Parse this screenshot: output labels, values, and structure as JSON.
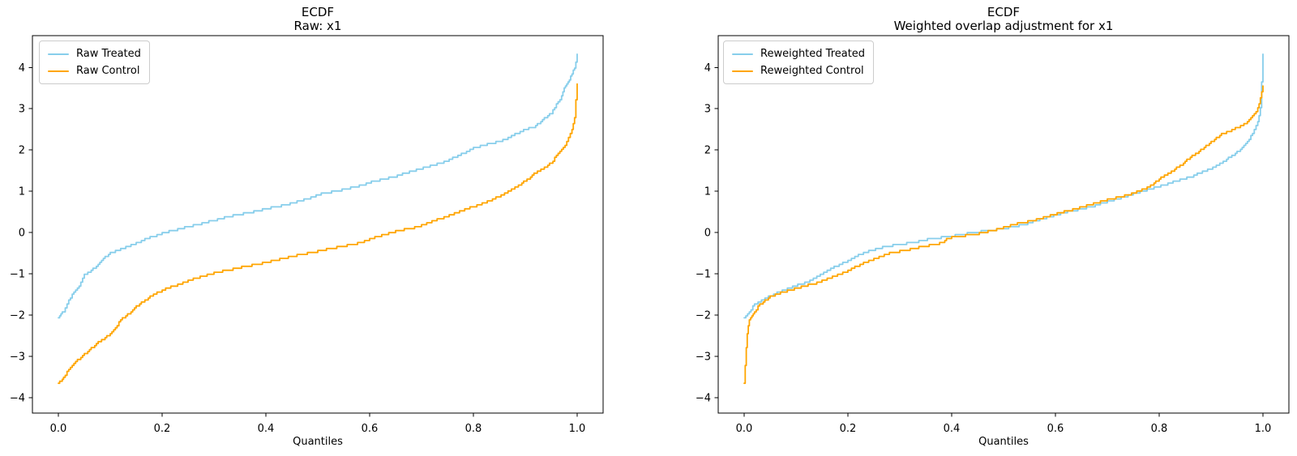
{
  "figure": {
    "background": "#ffffff",
    "text_color": "#000000",
    "spine_color": "#000000",
    "legend_border_color": "#cccccc"
  },
  "chart_data": [
    {
      "type": "line",
      "title_line1": "ECDF",
      "title_line2": "Raw: x1",
      "xlabel": "Quantiles",
      "ylabel": "",
      "grid": false,
      "legend_position": "upper-left",
      "xlim": [
        -0.05,
        1.05
      ],
      "ylim": [
        -4.37,
        4.77
      ],
      "x_tick_values": [
        0.0,
        0.2,
        0.4,
        0.6,
        0.8,
        1.0
      ],
      "x_tick_labels": [
        "0.0",
        "0.2",
        "0.4",
        "0.6",
        "0.8",
        "1.0"
      ],
      "y_tick_values": [
        -4,
        -3,
        -2,
        -1,
        0,
        1,
        2,
        3,
        4
      ],
      "y_tick_labels": [
        "-4",
        "-3",
        "-2",
        "-1",
        "0",
        "1",
        "2",
        "3",
        "4"
      ],
      "series": [
        {
          "name": "Raw Treated",
          "color": "#87CEEB",
          "points": [
            [
              0.0,
              -2.05
            ],
            [
              0.005,
              -1.98
            ],
            [
              0.01,
              -1.9
            ],
            [
              0.02,
              -1.62
            ],
            [
              0.03,
              -1.45
            ],
            [
              0.04,
              -1.3
            ],
            [
              0.05,
              -1.02
            ],
            [
              0.06,
              -0.95
            ],
            [
              0.07,
              -0.85
            ],
            [
              0.08,
              -0.7
            ],
            [
              0.09,
              -0.6
            ],
            [
              0.1,
              -0.5
            ],
            [
              0.12,
              -0.4
            ],
            [
              0.14,
              -0.3
            ],
            [
              0.16,
              -0.2
            ],
            [
              0.18,
              -0.1
            ],
            [
              0.2,
              -0.02
            ],
            [
              0.23,
              0.08
            ],
            [
              0.26,
              0.17
            ],
            [
              0.3,
              0.3
            ],
            [
              0.34,
              0.42
            ],
            [
              0.38,
              0.52
            ],
            [
              0.4,
              0.58
            ],
            [
              0.44,
              0.68
            ],
            [
              0.48,
              0.82
            ],
            [
              0.5,
              0.92
            ],
            [
              0.54,
              1.02
            ],
            [
              0.58,
              1.13
            ],
            [
              0.6,
              1.22
            ],
            [
              0.64,
              1.33
            ],
            [
              0.68,
              1.48
            ],
            [
              0.7,
              1.55
            ],
            [
              0.74,
              1.7
            ],
            [
              0.76,
              1.8
            ],
            [
              0.78,
              1.92
            ],
            [
              0.8,
              2.04
            ],
            [
              0.82,
              2.12
            ],
            [
              0.84,
              2.18
            ],
            [
              0.86,
              2.25
            ],
            [
              0.88,
              2.38
            ],
            [
              0.9,
              2.5
            ],
            [
              0.92,
              2.58
            ],
            [
              0.94,
              2.8
            ],
            [
              0.95,
              2.9
            ],
            [
              0.96,
              3.1
            ],
            [
              0.97,
              3.3
            ],
            [
              0.975,
              3.5
            ],
            [
              0.98,
              3.6
            ],
            [
              0.985,
              3.7
            ],
            [
              0.99,
              3.85
            ],
            [
              0.995,
              4.0
            ],
            [
              1.0,
              4.3
            ]
          ]
        },
        {
          "name": "Raw Control",
          "color": "#FFA500",
          "points": [
            [
              0.0,
              -3.65
            ],
            [
              0.005,
              -3.58
            ],
            [
              0.01,
              -3.5
            ],
            [
              0.02,
              -3.3
            ],
            [
              0.03,
              -3.18
            ],
            [
              0.04,
              -3.05
            ],
            [
              0.05,
              -2.95
            ],
            [
              0.06,
              -2.85
            ],
            [
              0.07,
              -2.72
            ],
            [
              0.08,
              -2.62
            ],
            [
              0.09,
              -2.55
            ],
            [
              0.1,
              -2.45
            ],
            [
              0.11,
              -2.3
            ],
            [
              0.12,
              -2.12
            ],
            [
              0.13,
              -2.02
            ],
            [
              0.14,
              -1.92
            ],
            [
              0.15,
              -1.8
            ],
            [
              0.16,
              -1.7
            ],
            [
              0.17,
              -1.62
            ],
            [
              0.18,
              -1.52
            ],
            [
              0.19,
              -1.45
            ],
            [
              0.2,
              -1.4
            ],
            [
              0.22,
              -1.3
            ],
            [
              0.24,
              -1.22
            ],
            [
              0.26,
              -1.12
            ],
            [
              0.28,
              -1.05
            ],
            [
              0.3,
              -0.98
            ],
            [
              0.33,
              -0.9
            ],
            [
              0.36,
              -0.82
            ],
            [
              0.4,
              -0.72
            ],
            [
              0.43,
              -0.63
            ],
            [
              0.46,
              -0.55
            ],
            [
              0.48,
              -0.5
            ],
            [
              0.5,
              -0.45
            ],
            [
              0.53,
              -0.37
            ],
            [
              0.56,
              -0.3
            ],
            [
              0.58,
              -0.25
            ],
            [
              0.6,
              -0.16
            ],
            [
              0.62,
              -0.08
            ],
            [
              0.64,
              0.0
            ],
            [
              0.66,
              0.06
            ],
            [
              0.68,
              0.1
            ],
            [
              0.7,
              0.18
            ],
            [
              0.72,
              0.28
            ],
            [
              0.74,
              0.35
            ],
            [
              0.76,
              0.45
            ],
            [
              0.78,
              0.55
            ],
            [
              0.8,
              0.63
            ],
            [
              0.82,
              0.72
            ],
            [
              0.84,
              0.82
            ],
            [
              0.86,
              0.95
            ],
            [
              0.88,
              1.1
            ],
            [
              0.9,
              1.25
            ],
            [
              0.92,
              1.45
            ],
            [
              0.94,
              1.6
            ],
            [
              0.95,
              1.7
            ],
            [
              0.96,
              1.85
            ],
            [
              0.97,
              2.0
            ],
            [
              0.98,
              2.2
            ],
            [
              0.99,
              2.5
            ],
            [
              0.995,
              2.8
            ],
            [
              1.0,
              3.6
            ]
          ]
        }
      ]
    },
    {
      "type": "line",
      "title_line1": "ECDF",
      "title_line2": "Weighted overlap adjustment for x1",
      "xlabel": "Quantiles",
      "ylabel": "",
      "grid": false,
      "legend_position": "upper-left",
      "xlim": [
        -0.05,
        1.05
      ],
      "ylim": [
        -4.37,
        4.77
      ],
      "x_tick_values": [
        0.0,
        0.2,
        0.4,
        0.6,
        0.8,
        1.0
      ],
      "x_tick_labels": [
        "0.0",
        "0.2",
        "0.4",
        "0.6",
        "0.8",
        "1.0"
      ],
      "y_tick_values": [
        -4,
        -3,
        -2,
        -1,
        0,
        1,
        2,
        3,
        4
      ],
      "y_tick_labels": [
        "-4",
        "-3",
        "-2",
        "-1",
        "0",
        "1",
        "2",
        "3",
        "4"
      ],
      "series": [
        {
          "name": "Reweighted Treated",
          "color": "#87CEEB",
          "points": [
            [
              0.0,
              -2.05
            ],
            [
              0.01,
              -1.9
            ],
            [
              0.02,
              -1.75
            ],
            [
              0.04,
              -1.6
            ],
            [
              0.06,
              -1.48
            ],
            [
              0.08,
              -1.38
            ],
            [
              0.1,
              -1.28
            ],
            [
              0.12,
              -1.2
            ],
            [
              0.14,
              -1.08
            ],
            [
              0.15,
              -1.0
            ],
            [
              0.16,
              -0.92
            ],
            [
              0.18,
              -0.8
            ],
            [
              0.2,
              -0.68
            ],
            [
              0.22,
              -0.55
            ],
            [
              0.24,
              -0.45
            ],
            [
              0.26,
              -0.38
            ],
            [
              0.28,
              -0.32
            ],
            [
              0.3,
              -0.28
            ],
            [
              0.32,
              -0.25
            ],
            [
              0.34,
              -0.2
            ],
            [
              0.36,
              -0.15
            ],
            [
              0.38,
              -0.12
            ],
            [
              0.4,
              -0.08
            ],
            [
              0.42,
              -0.04
            ],
            [
              0.44,
              0.0
            ],
            [
              0.46,
              0.03
            ],
            [
              0.48,
              0.06
            ],
            [
              0.5,
              0.1
            ],
            [
              0.52,
              0.15
            ],
            [
              0.54,
              0.2
            ],
            [
              0.56,
              0.28
            ],
            [
              0.58,
              0.35
            ],
            [
              0.6,
              0.42
            ],
            [
              0.62,
              0.5
            ],
            [
              0.64,
              0.55
            ],
            [
              0.66,
              0.6
            ],
            [
              0.68,
              0.67
            ],
            [
              0.7,
              0.75
            ],
            [
              0.72,
              0.82
            ],
            [
              0.74,
              0.9
            ],
            [
              0.76,
              0.98
            ],
            [
              0.78,
              1.05
            ],
            [
              0.8,
              1.12
            ],
            [
              0.82,
              1.2
            ],
            [
              0.84,
              1.28
            ],
            [
              0.86,
              1.35
            ],
            [
              0.88,
              1.45
            ],
            [
              0.9,
              1.55
            ],
            [
              0.92,
              1.7
            ],
            [
              0.94,
              1.85
            ],
            [
              0.95,
              1.95
            ],
            [
              0.96,
              2.05
            ],
            [
              0.97,
              2.2
            ],
            [
              0.98,
              2.4
            ],
            [
              0.99,
              2.7
            ],
            [
              0.995,
              3.0
            ],
            [
              1.0,
              4.3
            ]
          ]
        },
        {
          "name": "Reweighted Control",
          "color": "#FFA500",
          "points": [
            [
              0.0,
              -3.65
            ],
            [
              0.002,
              -3.2
            ],
            [
              0.004,
              -2.8
            ],
            [
              0.006,
              -2.45
            ],
            [
              0.008,
              -2.25
            ],
            [
              0.01,
              -2.1
            ],
            [
              0.015,
              -2.0
            ],
            [
              0.02,
              -1.9
            ],
            [
              0.03,
              -1.75
            ],
            [
              0.04,
              -1.65
            ],
            [
              0.05,
              -1.55
            ],
            [
              0.06,
              -1.5
            ],
            [
              0.08,
              -1.42
            ],
            [
              0.1,
              -1.35
            ],
            [
              0.12,
              -1.28
            ],
            [
              0.14,
              -1.22
            ],
            [
              0.16,
              -1.12
            ],
            [
              0.18,
              -1.02
            ],
            [
              0.2,
              -0.92
            ],
            [
              0.22,
              -0.8
            ],
            [
              0.24,
              -0.68
            ],
            [
              0.26,
              -0.6
            ],
            [
              0.28,
              -0.5
            ],
            [
              0.3,
              -0.45
            ],
            [
              0.32,
              -0.4
            ],
            [
              0.34,
              -0.35
            ],
            [
              0.36,
              -0.3
            ],
            [
              0.38,
              -0.25
            ],
            [
              0.39,
              -0.15
            ],
            [
              0.4,
              -0.12
            ],
            [
              0.42,
              -0.08
            ],
            [
              0.44,
              -0.05
            ],
            [
              0.46,
              0.0
            ],
            [
              0.48,
              0.05
            ],
            [
              0.5,
              0.12
            ],
            [
              0.52,
              0.2
            ],
            [
              0.54,
              0.25
            ],
            [
              0.56,
              0.3
            ],
            [
              0.58,
              0.38
            ],
            [
              0.6,
              0.45
            ],
            [
              0.62,
              0.52
            ],
            [
              0.64,
              0.58
            ],
            [
              0.66,
              0.65
            ],
            [
              0.68,
              0.72
            ],
            [
              0.7,
              0.8
            ],
            [
              0.72,
              0.85
            ],
            [
              0.74,
              0.92
            ],
            [
              0.76,
              1.0
            ],
            [
              0.78,
              1.1
            ],
            [
              0.8,
              1.3
            ],
            [
              0.82,
              1.45
            ],
            [
              0.84,
              1.62
            ],
            [
              0.86,
              1.82
            ],
            [
              0.88,
              2.0
            ],
            [
              0.9,
              2.2
            ],
            [
              0.92,
              2.38
            ],
            [
              0.94,
              2.48
            ],
            [
              0.95,
              2.55
            ],
            [
              0.96,
              2.6
            ],
            [
              0.97,
              2.68
            ],
            [
              0.98,
              2.82
            ],
            [
              0.99,
              3.0
            ],
            [
              0.995,
              3.25
            ],
            [
              1.0,
              3.55
            ]
          ]
        }
      ]
    }
  ]
}
